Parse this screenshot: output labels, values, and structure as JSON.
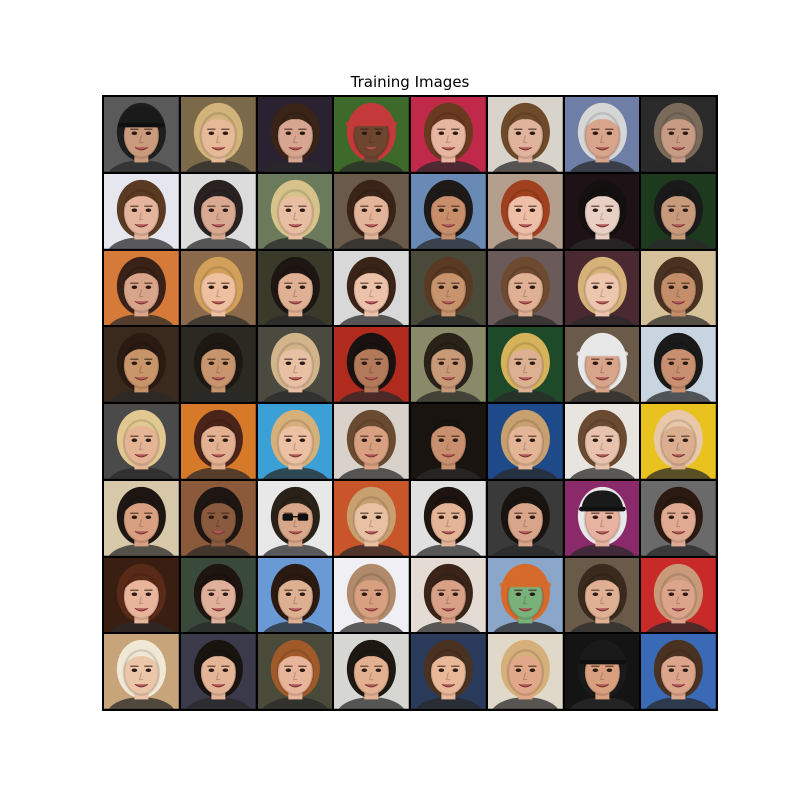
{
  "figure": {
    "title": "Training Images"
  },
  "grid": {
    "rows": 8,
    "cols": 8,
    "tiles": [
      {
        "bg": "#5a5a5a",
        "skin": "#c99a7c",
        "hair": "#1e1e1e",
        "accessory": "cap"
      },
      {
        "bg": "#7a6a4a",
        "skin": "#e6b999",
        "hair": "#d2b37a",
        "accessory": ""
      },
      {
        "bg": "#2a2230",
        "skin": "#d6a690",
        "hair": "#3a2418",
        "accessory": ""
      },
      {
        "bg": "#3d6a2a",
        "skin": "#6e4630",
        "hair": "#c43a3a",
        "accessory": "hat"
      },
      {
        "bg": "#c0294a",
        "skin": "#e7b6a0",
        "hair": "#6a3a20",
        "accessory": ""
      },
      {
        "bg": "#d8d4cc",
        "skin": "#e0b49c",
        "hair": "#6e4a2a",
        "accessory": ""
      },
      {
        "bg": "#6e7ea6",
        "skin": "#d8a48c",
        "hair": "#d6d6d6",
        "accessory": ""
      },
      {
        "bg": "#2a2a2a",
        "skin": "#c89c84",
        "hair": "#7a6a5a",
        "accessory": ""
      },
      {
        "bg": "#e6e6ee",
        "skin": "#e4b49c",
        "hair": "#5a3a22",
        "accessory": ""
      },
      {
        "bg": "#dcdcdc",
        "skin": "#d8a890",
        "hair": "#2a2220",
        "accessory": ""
      },
      {
        "bg": "#6a7a5a",
        "skin": "#e8bea2",
        "hair": "#d6c28a",
        "accessory": ""
      },
      {
        "bg": "#6a5a4a",
        "skin": "#e4b49a",
        "hair": "#3a2418",
        "accessory": ""
      },
      {
        "bg": "#6a8ab6",
        "skin": "#c88e6a",
        "hair": "#1e1a18",
        "accessory": ""
      },
      {
        "bg": "#b49e8e",
        "skin": "#eebea6",
        "hair": "#a0401e",
        "accessory": ""
      },
      {
        "bg": "#1e1216",
        "skin": "#e8d0c4",
        "hair": "#141010",
        "accessory": ""
      },
      {
        "bg": "#1e3a1e",
        "skin": "#c89a7c",
        "hair": "#1a1a1a",
        "accessory": ""
      },
      {
        "bg": "#d67a3a",
        "skin": "#d8a48a",
        "hair": "#3a2218",
        "accessory": ""
      },
      {
        "bg": "#8a6a4a",
        "skin": "#eec0a0",
        "hair": "#d2a05a",
        "accessory": ""
      },
      {
        "bg": "#3a3a2a",
        "skin": "#e0b094",
        "hair": "#1e1612",
        "accessory": ""
      },
      {
        "bg": "#d8d8d8",
        "skin": "#ecc2aa",
        "hair": "#3a2418",
        "accessory": ""
      },
      {
        "bg": "#4a4a3a",
        "skin": "#c8946e",
        "hair": "#5a3a22",
        "accessory": ""
      },
      {
        "bg": "#6a5a5a",
        "skin": "#e0b094",
        "hair": "#6e4a30",
        "accessory": ""
      },
      {
        "bg": "#4a2a30",
        "skin": "#eec6ae",
        "hair": "#d6b27a",
        "accessory": ""
      },
      {
        "bg": "#d6c29a",
        "skin": "#c48e6a",
        "hair": "#4a3222",
        "accessory": ""
      },
      {
        "bg": "#3a2a1e",
        "skin": "#c8946a",
        "hair": "#2a1a12",
        "accessory": ""
      },
      {
        "bg": "#2a2a22",
        "skin": "#c8946e",
        "hair": "#1e1812",
        "accessory": ""
      },
      {
        "bg": "#4a4a40",
        "skin": "#e8c0a4",
        "hair": "#d2b48a",
        "accessory": ""
      },
      {
        "bg": "#b02a1e",
        "skin": "#b27a5a",
        "hair": "#1a1210",
        "accessory": ""
      },
      {
        "bg": "#8a8a6a",
        "skin": "#c89a78",
        "hair": "#2a2218",
        "accessory": ""
      },
      {
        "bg": "#1e4a2a",
        "skin": "#dcb090",
        "hair": "#d6b25a",
        "accessory": ""
      },
      {
        "bg": "#6a5a4a",
        "skin": "#d8a48a",
        "hair": "#e8e8e8",
        "accessory": "hat"
      },
      {
        "bg": "#c8d4e0",
        "skin": "#c89070",
        "hair": "#1a1a1a",
        "accessory": ""
      },
      {
        "bg": "#4a4a4a",
        "skin": "#e4b494",
        "hair": "#e0c890",
        "accessory": ""
      },
      {
        "bg": "#d67a2a",
        "skin": "#e4b092",
        "hair": "#4a2418",
        "accessory": ""
      },
      {
        "bg": "#3aa0d6",
        "skin": "#ecc0a2",
        "hair": "#d6b07a",
        "accessory": ""
      },
      {
        "bg": "#d8d2ca",
        "skin": "#d8a080",
        "hair": "#6a4a30",
        "accessory": ""
      },
      {
        "bg": "#1a1410",
        "skin": "#c8906e",
        "hair": "#1a1410",
        "accessory": ""
      },
      {
        "bg": "#1e4a8a",
        "skin": "#e4b496",
        "hair": "#c8a070",
        "accessory": ""
      },
      {
        "bg": "#e8e4e0",
        "skin": "#e8c2ac",
        "hair": "#6a4a30",
        "accessory": ""
      },
      {
        "bg": "#e8c21e",
        "skin": "#dcae90",
        "hair": "#e8c8a8",
        "accessory": ""
      },
      {
        "bg": "#d6c8a8",
        "skin": "#d8a080",
        "hair": "#1e1612",
        "accessory": ""
      },
      {
        "bg": "#8a5a3a",
        "skin": "#8a5a3e",
        "hair": "#1e1612",
        "accessory": ""
      },
      {
        "bg": "#e8e8e8",
        "skin": "#d8a688",
        "hair": "#2a2218",
        "accessory": "glasses"
      },
      {
        "bg": "#c8562a",
        "skin": "#e8c0a2",
        "hair": "#c8a070",
        "accessory": ""
      },
      {
        "bg": "#e0e0e0",
        "skin": "#e4b496",
        "hair": "#1e1410",
        "accessory": ""
      },
      {
        "bg": "#3a3a3a",
        "skin": "#d8a48a",
        "hair": "#1a1410",
        "accessory": ""
      },
      {
        "bg": "#8a2a6a",
        "skin": "#e8b2a0",
        "hair": "#e8e8e8",
        "accessory": "cap"
      },
      {
        "bg": "#6a6a6a",
        "skin": "#e0aa92",
        "hair": "#2a1a12",
        "accessory": ""
      },
      {
        "bg": "#3a1e12",
        "skin": "#e8b49c",
        "hair": "#5a2a18",
        "accessory": ""
      },
      {
        "bg": "#3a4a3a",
        "skin": "#e0b09a",
        "hair": "#1e1410",
        "accessory": ""
      },
      {
        "bg": "#6a9ad6",
        "skin": "#dcb090",
        "hair": "#2a1a12",
        "accessory": ""
      },
      {
        "bg": "#f0f0f4",
        "skin": "#d8a080",
        "hair": "#b08a6a",
        "accessory": ""
      },
      {
        "bg": "#e4dcd4",
        "skin": "#d8a086",
        "hair": "#3a2418",
        "accessory": ""
      },
      {
        "bg": "#8aa6c8",
        "skin": "#7ab07a",
        "hair": "#d66a2a",
        "accessory": "hat"
      },
      {
        "bg": "#6a5a4a",
        "skin": "#e0b094",
        "hair": "#3a2a1e",
        "accessory": ""
      },
      {
        "bg": "#c82a2a",
        "skin": "#dca48a",
        "hair": "#c89a7a",
        "accessory": ""
      },
      {
        "bg": "#c8a47a",
        "skin": "#ecc6a8",
        "hair": "#f0e8d4",
        "accessory": ""
      },
      {
        "bg": "#3a3a4a",
        "skin": "#e4b496",
        "hair": "#1a1410",
        "accessory": ""
      },
      {
        "bg": "#4a4a3a",
        "skin": "#e8b49a",
        "hair": "#a05a2a",
        "accessory": ""
      },
      {
        "bg": "#d6d6d2",
        "skin": "#e4b092",
        "hair": "#1e1812",
        "accessory": ""
      },
      {
        "bg": "#2a3a5a",
        "skin": "#e8b898",
        "hair": "#4a3222",
        "accessory": ""
      },
      {
        "bg": "#e0d8c8",
        "skin": "#e0a888",
        "hair": "#d6b07a",
        "accessory": ""
      },
      {
        "bg": "#141414",
        "skin": "#d8a07e",
        "hair": "#1a1a1a",
        "accessory": "cap"
      },
      {
        "bg": "#3a6ab6",
        "skin": "#dca48a",
        "hair": "#4a3222",
        "accessory": ""
      }
    ]
  }
}
